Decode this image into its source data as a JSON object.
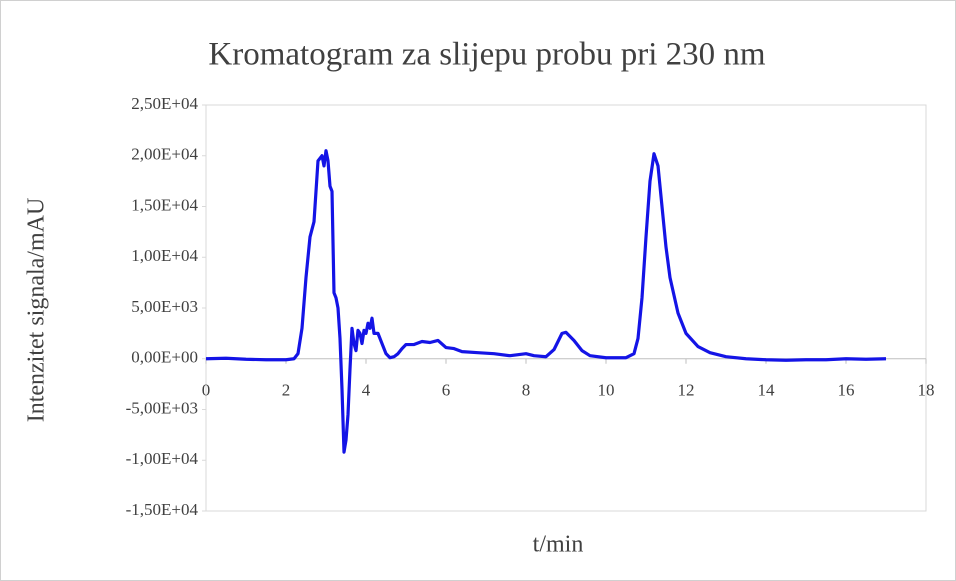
{
  "chart_data": {
    "type": "line",
    "title": "Kromatogram za slijepu probu pri 230 nm",
    "xlabel": "t/min",
    "ylabel": "Intenzitet signala/mAU",
    "xlim": [
      0,
      18
    ],
    "xticks": [
      0,
      2,
      4,
      6,
      8,
      10,
      12,
      14,
      16,
      18
    ],
    "ylim": [
      -15000,
      25000
    ],
    "yticks": [
      {
        "value": -15000,
        "label": "-1,50E+04"
      },
      {
        "value": -10000,
        "label": "-1,00E+04"
      },
      {
        "value": -5000,
        "label": "-5,00E+03"
      },
      {
        "value": 0,
        "label": "0,00E+00"
      },
      {
        "value": 5000,
        "label": "5,00E+03"
      },
      {
        "value": 10000,
        "label": "1,00E+04"
      },
      {
        "value": 15000,
        "label": "1,50E+04"
      },
      {
        "value": 20000,
        "label": "2,00E+04"
      },
      {
        "value": 25000,
        "label": "2,50E+04"
      }
    ],
    "grid": false,
    "x": [
      0,
      0.5,
      1,
      1.5,
      2,
      2.2,
      2.3,
      2.4,
      2.5,
      2.6,
      2.7,
      2.8,
      2.9,
      2.95,
      3.0,
      3.05,
      3.1,
      3.15,
      3.2,
      3.25,
      3.3,
      3.35,
      3.4,
      3.45,
      3.5,
      3.55,
      3.6,
      3.65,
      3.7,
      3.75,
      3.8,
      3.85,
      3.9,
      3.95,
      4.0,
      4.05,
      4.1,
      4.15,
      4.2,
      4.3,
      4.4,
      4.5,
      4.6,
      4.7,
      4.8,
      4.9,
      5.0,
      5.2,
      5.4,
      5.6,
      5.8,
      6.0,
      6.2,
      6.4,
      6.8,
      7.2,
      7.6,
      8.0,
      8.2,
      8.5,
      8.7,
      8.9,
      9.0,
      9.2,
      9.4,
      9.6,
      10.0,
      10.5,
      10.7,
      10.8,
      10.9,
      11.0,
      11.1,
      11.2,
      11.3,
      11.4,
      11.5,
      11.6,
      11.8,
      12.0,
      12.3,
      12.6,
      13.0,
      13.5,
      14,
      14.5,
      15,
      15.5,
      16,
      16.5,
      17
    ],
    "series": [
      {
        "name": "signal",
        "color": "#1414e6",
        "values": [
          0,
          50,
          -50,
          -100,
          -100,
          0,
          500,
          3000,
          8000,
          12000,
          13500,
          19500,
          20000,
          19000,
          20500,
          19500,
          17000,
          16500,
          6500,
          6000,
          5000,
          2000,
          -3000,
          -9200,
          -8000,
          -5500,
          -1000,
          3000,
          1500,
          800,
          2800,
          2500,
          1500,
          2800,
          2500,
          3500,
          3000,
          4000,
          2500,
          2500,
          1500,
          500,
          100,
          200,
          500,
          1000,
          1400,
          1400,
          1700,
          1600,
          1800,
          1100,
          1000,
          700,
          600,
          500,
          300,
          500,
          300,
          200,
          900,
          2500,
          2600,
          1800,
          800,
          300,
          100,
          100,
          500,
          2000,
          6000,
          12000,
          17500,
          20200,
          19000,
          15000,
          11000,
          8000,
          4500,
          2500,
          1200,
          600,
          200,
          0,
          -100,
          -150,
          -100,
          -100,
          0,
          -50,
          0
        ]
      }
    ]
  }
}
